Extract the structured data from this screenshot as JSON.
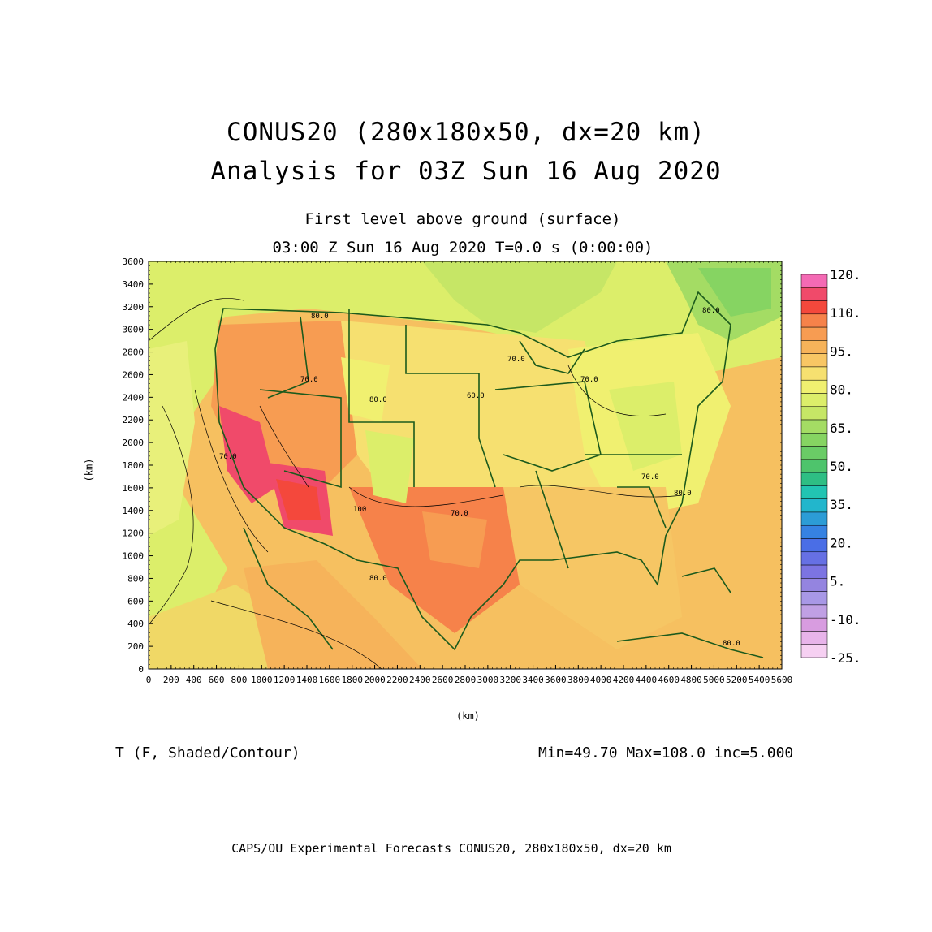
{
  "header": {
    "title_line1": "CONUS20 (280x180x50, dx=20 km)",
    "title_line2": "Analysis for 03Z Sun 16 Aug 2020",
    "level": "First level above ground (surface)",
    "time": "03:00 Z Sun 16 Aug 2020    T=0.0 s (0:00:00)"
  },
  "map": {
    "x_axis_label": "(km)",
    "y_axis_label": "(km)",
    "x_ticks": [
      "0",
      "200",
      "400",
      "600",
      "800",
      "1000",
      "1200",
      "1400",
      "1600",
      "1800",
      "2000",
      "2200",
      "2400",
      "2600",
      "2800",
      "3000",
      "3200",
      "3400",
      "3600",
      "3800",
      "4000",
      "4200",
      "4400",
      "4600",
      "4800",
      "5000",
      "5200",
      "5400",
      "5600"
    ],
    "y_ticks": [
      "0",
      "200",
      "400",
      "600",
      "800",
      "1000",
      "1200",
      "1400",
      "1600",
      "1800",
      "2000",
      "2200",
      "2400",
      "2600",
      "2800",
      "3000",
      "3200",
      "3400",
      "3600"
    ],
    "x_range_km": [
      0,
      5600
    ],
    "y_range_km": [
      0,
      3600
    ],
    "contour_labels": [
      "80.0",
      "70.0",
      "80.0",
      "70.0",
      "60.0",
      "70.0",
      "70.0",
      "70.0",
      "80.0",
      "70.0",
      "80.0",
      "100",
      "80.0",
      "80.0"
    ]
  },
  "colorbar": {
    "labels": [
      "120.",
      "110.",
      "95.",
      "80.",
      "65.",
      "50.",
      "35.",
      "20.",
      "5.",
      "-10.",
      "-25."
    ],
    "colors": [
      "#f46ab4",
      "#f04a6a",
      "#f4483c",
      "#f6824a",
      "#f79c52",
      "#f6b35a",
      "#f8c664",
      "#f6e070",
      "#f0f070",
      "#dcee6a",
      "#c6e666",
      "#a4dc64",
      "#86d462",
      "#6acc66",
      "#4ec46c",
      "#2ebe84",
      "#22c4b2",
      "#22b6cc",
      "#2c9cd6",
      "#3682e2",
      "#4a6ee6",
      "#6670e4",
      "#7c74e2",
      "#9484e0",
      "#a898e6",
      "#c0a0e4",
      "#d89ce0",
      "#e8b4ea",
      "#f6d0f2"
    ]
  },
  "field": {
    "variable": "T (F, Shaded/Contour)",
    "stats": "Min=49.70 Max=108.0 inc=5.000"
  },
  "footer": {
    "credit": "CAPS/OU Experimental Forecasts  CONUS20, 280x180x50, dx=20 km"
  }
}
